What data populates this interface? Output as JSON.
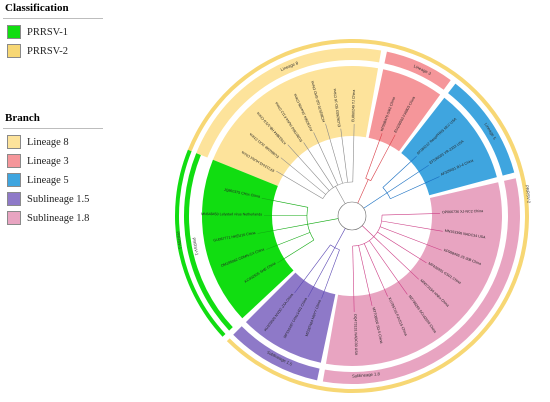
{
  "classification": {
    "title": "Classification",
    "items": [
      {
        "label": "PRRSV-1",
        "color": "#11dd11"
      },
      {
        "label": "PRRSV-2",
        "color": "#f7d774"
      }
    ]
  },
  "branch": {
    "title": "Branch",
    "items": [
      {
        "label": "Lineage 8",
        "color": "#fde39b"
      },
      {
        "label": "Lineage 3",
        "color": "#f5969a"
      },
      {
        "label": "Lineage 5",
        "color": "#3fa5df"
      },
      {
        "label": "Sublineage 1.5",
        "color": "#8e79c8"
      },
      {
        "label": "Sublineage 1.8",
        "color": "#e8a4c1"
      }
    ]
  },
  "strip_labels": {
    "lineage8": "Lineage 8",
    "lineage3": "Lineage 3",
    "lineage5": "Lineage 5",
    "sub18": "Sublineage 1.8",
    "sub15": "Sublineage 1.5",
    "prrsv1": "PRRSV-1",
    "prrsv1_outer": "PRRSV-1",
    "prrsv2": "PRRSV-2"
  },
  "tips": {
    "lineage8": [
      "EF112445 HUN4 China",
      "EU860248 JXA1 China",
      "KT633844 HB-1/3.9 China",
      "EU807840 HuN4-F112 China",
      "AY150564 JXwn06 China",
      "KC862570 GD-SHO China",
      "EU262603 SD-16 China",
      "EU860249 TJ China"
    ],
    "lineage3": [
      "KP998476 GM2 China",
      "EU109503 FJ0903 China"
    ],
    "lineage5": [
      "AF184212 RespPRRS MLV USA",
      "EF536003 VR-2332 USA",
      "AF325691 BJ-4 China"
    ],
    "sub18": [
      "OP066736 XJ-NC2 China",
      "MN153396 NADC34 USA",
      "KP998405 JS-308 China",
      "MF426901 GS01 China",
      "MN073150 HNhx China",
      "MZ798266 SCcd2020 China",
      "KU705716 FJXS15 China",
      "MT708500 SD-5 China",
      "OQ473131 NADC30 USA"
    ],
    "sub15": [
      "MZ287404 HNYY China",
      "MF510497 CHsx1401 China",
      "KU203020 NVDC-JXA China"
    ],
    "prrsv1": [
      "KC492505 SHE China",
      "OM185062 CDMN-CX China",
      "GU067771 HKEU16 China",
      "MN648450 Lelystad virus Netherlands",
      "JQ860375 CHsx China"
    ]
  }
}
